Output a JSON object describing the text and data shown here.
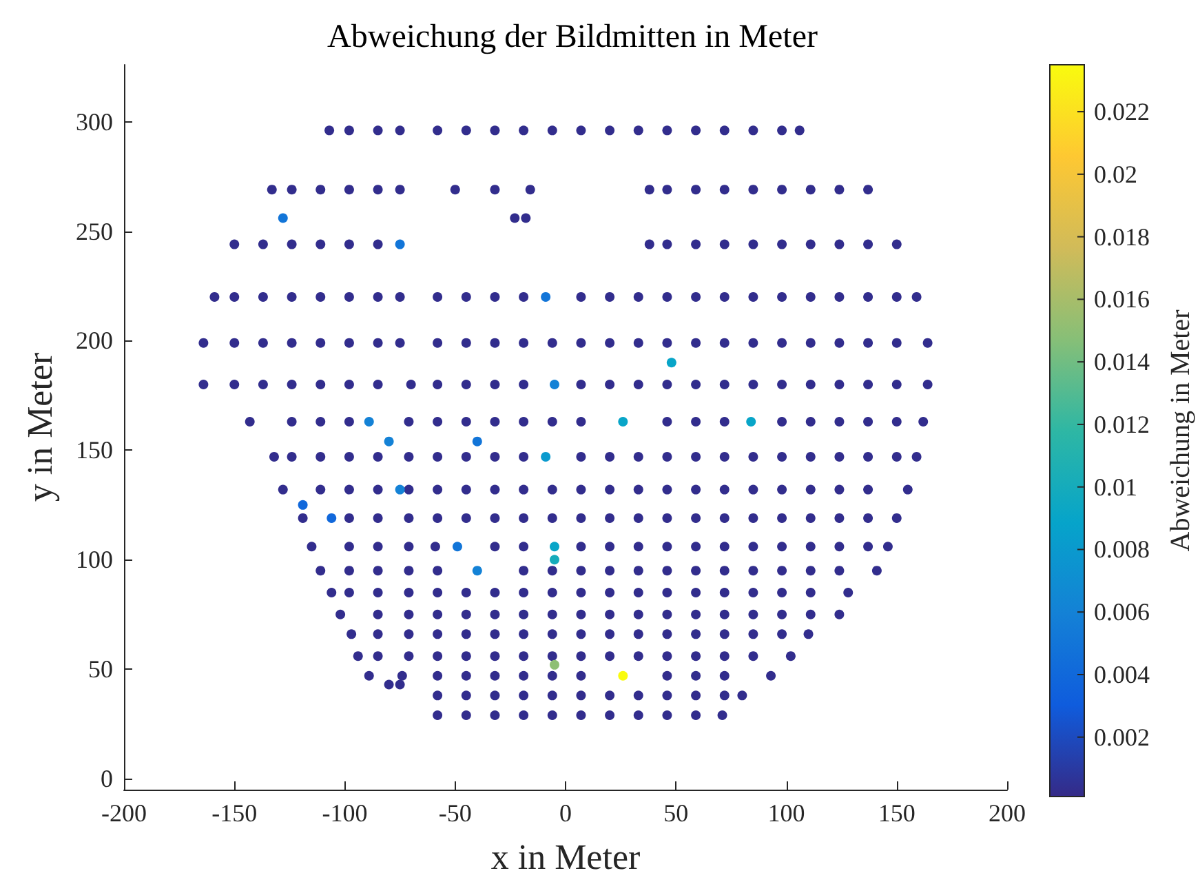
{
  "chart_data": {
    "type": "scatter",
    "title": "Abweichung der Bildmitten in Meter",
    "xlabel": "x in Meter",
    "ylabel": "y in Meter",
    "clabel": "Abweichung in Meter",
    "xlim": [
      -200,
      200
    ],
    "xticks": [
      -200,
      -150,
      -100,
      -50,
      0,
      50,
      100,
      150,
      200
    ],
    "ylim": [
      -5,
      326
    ],
    "yticks": [
      0,
      50,
      100,
      150,
      200,
      250,
      300
    ],
    "clim": [
      0.0001,
      0.0235
    ],
    "cticks": [
      0.002,
      0.004,
      0.006,
      0.008,
      0.01,
      0.012,
      0.014,
      0.016,
      0.018,
      0.02,
      0.022
    ],
    "marker": "circle",
    "series": [
      {
        "x": [
          -107,
          -98,
          -85,
          -75,
          -58,
          -45,
          -32,
          -19,
          -6,
          7,
          20,
          33,
          46,
          59,
          72,
          85,
          98,
          106
        ],
        "values": [
          296,
          296,
          296,
          296,
          296,
          296,
          296,
          296,
          296,
          296,
          296,
          296,
          296,
          296,
          296,
          296,
          296,
          296
        ],
        "cvalues": [
          0.0003,
          0.0003,
          0.0003,
          0.0003,
          0.0003,
          0.0003,
          0.0003,
          0.0003,
          0.0003,
          0.0003,
          0.0003,
          0.0003,
          0.0003,
          0.0003,
          0.0003,
          0.0003,
          0.0003,
          0.0003
        ]
      },
      {
        "x": [
          -133,
          -124,
          -111,
          -98,
          -85,
          -75,
          -50,
          -32,
          -16,
          38,
          46,
          59,
          72,
          85,
          98,
          111,
          124,
          137
        ],
        "values": [
          269,
          269,
          269,
          269,
          269,
          269,
          269,
          269,
          269,
          269,
          269,
          269,
          269,
          269,
          269,
          269,
          269,
          269
        ],
        "cvalues": [
          0.0003,
          0.0003,
          0.0003,
          0.0003,
          0.0003,
          0.0003,
          0.0003,
          0.0003,
          0.0003,
          0.0003,
          0.0003,
          0.0003,
          0.0003,
          0.0003,
          0.0003,
          0.0003,
          0.0003,
          0.0003
        ]
      },
      {
        "x": [
          -23,
          -18
        ],
        "values": [
          256,
          256
        ],
        "cvalues": [
          0.0003,
          0.0003
        ]
      },
      {
        "x": [
          -150,
          -137,
          -124,
          -111,
          -98,
          -85,
          38,
          46,
          59,
          72,
          85,
          98,
          111,
          124,
          137,
          150
        ],
        "values": [
          244,
          244,
          244,
          244,
          244,
          244,
          244,
          244,
          244,
          244,
          244,
          244,
          244,
          244,
          244,
          244
        ],
        "cvalues": [
          0.0003,
          0.0003,
          0.0003,
          0.0003,
          0.0003,
          0.0003,
          0.0003,
          0.0003,
          0.0003,
          0.0003,
          0.0003,
          0.0003,
          0.0003,
          0.0003,
          0.0003,
          0.0003
        ]
      },
      {
        "x": [
          -159,
          -150,
          -137,
          -124,
          -111,
          -98,
          -85,
          -75,
          -58,
          -45,
          -32,
          -19,
          7,
          20,
          33,
          46,
          59,
          72,
          85,
          98,
          111,
          124,
          137,
          150,
          159
        ],
        "values": [
          220,
          220,
          220,
          220,
          220,
          220,
          220,
          220,
          220,
          220,
          220,
          220,
          220,
          220,
          220,
          220,
          220,
          220,
          220,
          220,
          220,
          220,
          220,
          220,
          220
        ],
        "cvalues": [
          0.0003,
          0.0003,
          0.0003,
          0.0003,
          0.0003,
          0.0003,
          0.0003,
          0.0003,
          0.0003,
          0.0003,
          0.0003,
          0.0003,
          0.0003,
          0.0003,
          0.0003,
          0.0003,
          0.0003,
          0.0003,
          0.0003,
          0.0003,
          0.0003,
          0.0003,
          0.0003,
          0.0003,
          0.0003
        ]
      },
      {
        "x": [
          -164,
          -150,
          -137,
          -124,
          -111,
          -98,
          -85,
          -75,
          -58,
          -45,
          -32,
          -19,
          -6,
          7,
          20,
          33,
          46,
          59,
          72,
          85,
          98,
          111,
          124,
          137,
          150,
          164
        ],
        "values": [
          199,
          199,
          199,
          199,
          199,
          199,
          199,
          199,
          199,
          199,
          199,
          199,
          199,
          199,
          199,
          199,
          199,
          199,
          199,
          199,
          199,
          199,
          199,
          199,
          199,
          199
        ],
        "cvalues": [
          0.0003,
          0.0003,
          0.0003,
          0.0003,
          0.0003,
          0.0003,
          0.0003,
          0.0003,
          0.0003,
          0.0003,
          0.0003,
          0.0003,
          0.0003,
          0.0003,
          0.0003,
          0.0003,
          0.0003,
          0.0003,
          0.0003,
          0.0003,
          0.0003,
          0.0003,
          0.0003,
          0.0003,
          0.0003,
          0.0003
        ]
      },
      {
        "x": [
          -164,
          -150,
          -137,
          -124,
          -111,
          -98,
          -85,
          -70,
          -58,
          -45,
          -32,
          -19,
          7,
          20,
          33,
          46,
          59,
          72,
          85,
          98,
          111,
          124,
          137,
          150,
          164
        ],
        "values": [
          180,
          180,
          180,
          180,
          180,
          180,
          180,
          180,
          180,
          180,
          180,
          180,
          180,
          180,
          180,
          180,
          180,
          180,
          180,
          180,
          180,
          180,
          180,
          180,
          180
        ],
        "cvalues": [
          0.0003,
          0.0003,
          0.0003,
          0.0003,
          0.0003,
          0.0003,
          0.0003,
          0.0003,
          0.0003,
          0.0003,
          0.0003,
          0.0003,
          0.0003,
          0.0003,
          0.0003,
          0.0003,
          0.0003,
          0.0003,
          0.0003,
          0.0003,
          0.0003,
          0.0003,
          0.0003,
          0.0003,
          0.0003
        ]
      },
      {
        "x": [
          -143,
          -124,
          -111,
          -98,
          -71,
          -58,
          -45,
          -32,
          -19,
          -6,
          7,
          46,
          59,
          72,
          98,
          111,
          124,
          137,
          150,
          162
        ],
        "values": [
          163,
          163,
          163,
          163,
          163,
          163,
          163,
          163,
          163,
          163,
          163,
          163,
          163,
          163,
          163,
          163,
          163,
          163,
          163,
          163
        ],
        "cvalues": [
          0.0003,
          0.0003,
          0.0003,
          0.0003,
          0.0003,
          0.0003,
          0.0003,
          0.0003,
          0.0003,
          0.0003,
          0.0003,
          0.0003,
          0.0003,
          0.0003,
          0.0003,
          0.0003,
          0.0003,
          0.0003,
          0.0003,
          0.0003
        ]
      },
      {
        "x": [
          -132,
          -124,
          -111,
          -98,
          -85,
          -71,
          -58,
          -45,
          -32,
          -19,
          7,
          20,
          33,
          46,
          59,
          72,
          85,
          98,
          111,
          124,
          137,
          150,
          159
        ],
        "values": [
          147,
          147,
          147,
          147,
          147,
          147,
          147,
          147,
          147,
          147,
          147,
          147,
          147,
          147,
          147,
          147,
          147,
          147,
          147,
          147,
          147,
          147,
          147
        ],
        "cvalues": [
          0.0003,
          0.0003,
          0.0003,
          0.0003,
          0.0003,
          0.0003,
          0.0003,
          0.0003,
          0.0003,
          0.0003,
          0.0003,
          0.0003,
          0.0003,
          0.0003,
          0.0003,
          0.0003,
          0.0003,
          0.0003,
          0.0003,
          0.0003,
          0.0003,
          0.0003,
          0.0003
        ]
      },
      {
        "x": [
          -128,
          -111,
          -98,
          -85,
          -71,
          -58,
          -45,
          -32,
          -19,
          -6,
          7,
          20,
          33,
          46,
          59,
          72,
          85,
          98,
          111,
          124,
          137,
          155
        ],
        "values": [
          132,
          132,
          132,
          132,
          132,
          132,
          132,
          132,
          132,
          132,
          132,
          132,
          132,
          132,
          132,
          132,
          132,
          132,
          132,
          132,
          132,
          132
        ],
        "cvalues": [
          0.0003,
          0.0003,
          0.0003,
          0.0003,
          0.0003,
          0.0003,
          0.0003,
          0.0003,
          0.0003,
          0.0003,
          0.0003,
          0.0003,
          0.0003,
          0.0003,
          0.0003,
          0.0003,
          0.0003,
          0.0003,
          0.0003,
          0.0003,
          0.0003,
          0.0003
        ]
      },
      {
        "x": [
          -119,
          -98,
          -85,
          -71,
          -58,
          -45,
          -32,
          -19,
          -6,
          7,
          20,
          33,
          46,
          59,
          72,
          85,
          98,
          111,
          124,
          137,
          150
        ],
        "values": [
          119,
          119,
          119,
          119,
          119,
          119,
          119,
          119,
          119,
          119,
          119,
          119,
          119,
          119,
          119,
          119,
          119,
          119,
          119,
          119,
          119
        ],
        "cvalues": [
          0.0003,
          0.0003,
          0.0003,
          0.0003,
          0.0003,
          0.0003,
          0.0003,
          0.0003,
          0.0003,
          0.0003,
          0.0003,
          0.0003,
          0.0003,
          0.0003,
          0.0003,
          0.0003,
          0.0003,
          0.0003,
          0.0003,
          0.0003,
          0.0003
        ]
      },
      {
        "x": [
          -115,
          -98,
          -85,
          -71,
          -59,
          -32,
          -19,
          7,
          20,
          33,
          46,
          59,
          72,
          85,
          98,
          111,
          124,
          137,
          146
        ],
        "values": [
          106,
          106,
          106,
          106,
          106,
          106,
          106,
          106,
          106,
          106,
          106,
          106,
          106,
          106,
          106,
          106,
          106,
          106,
          106
        ],
        "cvalues": [
          0.0003,
          0.0003,
          0.0003,
          0.0003,
          0.0003,
          0.0003,
          0.0003,
          0.0003,
          0.0003,
          0.0003,
          0.0003,
          0.0003,
          0.0003,
          0.0003,
          0.0003,
          0.0003,
          0.0003,
          0.0003,
          0.0003
        ]
      },
      {
        "x": [
          -111,
          -98,
          -85,
          -71,
          -58,
          -19,
          -6,
          7,
          20,
          33,
          46,
          59,
          72,
          85,
          98,
          111,
          124,
          141
        ],
        "values": [
          95,
          95,
          95,
          95,
          95,
          95,
          95,
          95,
          95,
          95,
          95,
          95,
          95,
          95,
          95,
          95,
          95,
          95
        ],
        "cvalues": [
          0.0003,
          0.0003,
          0.0003,
          0.0003,
          0.0003,
          0.0003,
          0.0003,
          0.0003,
          0.0003,
          0.0003,
          0.0003,
          0.0003,
          0.0003,
          0.0003,
          0.0003,
          0.0003,
          0.0003,
          0.0003
        ]
      },
      {
        "x": [
          -106,
          -98,
          -85,
          -71,
          -58,
          -45,
          -32,
          -19,
          -6,
          7,
          20,
          33,
          46,
          59,
          72,
          85,
          98,
          111,
          128
        ],
        "values": [
          85,
          85,
          85,
          85,
          85,
          85,
          85,
          85,
          85,
          85,
          85,
          85,
          85,
          85,
          85,
          85,
          85,
          85,
          85
        ],
        "cvalues": [
          0.0003,
          0.0003,
          0.0003,
          0.0003,
          0.0003,
          0.0003,
          0.0003,
          0.0003,
          0.0003,
          0.0003,
          0.0003,
          0.0003,
          0.0003,
          0.0003,
          0.0003,
          0.0003,
          0.0003,
          0.0003,
          0.0003
        ]
      },
      {
        "x": [
          -102,
          -85,
          -71,
          -58,
          -45,
          -32,
          -19,
          -6,
          7,
          20,
          33,
          46,
          59,
          72,
          85,
          98,
          111,
          124
        ],
        "values": [
          75,
          75,
          75,
          75,
          75,
          75,
          75,
          75,
          75,
          75,
          75,
          75,
          75,
          75,
          75,
          75,
          75,
          75
        ],
        "cvalues": [
          0.0003,
          0.0003,
          0.0003,
          0.0003,
          0.0003,
          0.0003,
          0.0003,
          0.0003,
          0.0003,
          0.0003,
          0.0003,
          0.0003,
          0.0003,
          0.0003,
          0.0003,
          0.0003,
          0.0003,
          0.0003
        ]
      },
      {
        "x": [
          -97,
          -85,
          -71,
          -58,
          -45,
          -32,
          -19,
          -6,
          7,
          20,
          33,
          46,
          59,
          72,
          85,
          98,
          110
        ],
        "values": [
          66,
          66,
          66,
          66,
          66,
          66,
          66,
          66,
          66,
          66,
          66,
          66,
          66,
          66,
          66,
          66,
          66
        ],
        "cvalues": [
          0.0003,
          0.0003,
          0.0003,
          0.0003,
          0.0003,
          0.0003,
          0.0003,
          0.0003,
          0.0003,
          0.0003,
          0.0003,
          0.0003,
          0.0003,
          0.0003,
          0.0003,
          0.0003,
          0.0003
        ]
      },
      {
        "x": [
          -94,
          -85,
          -71,
          -58,
          -45,
          -32,
          -19,
          -6,
          7,
          20,
          33,
          46,
          59,
          72,
          85,
          102
        ],
        "values": [
          56,
          56,
          56,
          56,
          56,
          56,
          56,
          56,
          56,
          56,
          56,
          56,
          56,
          56,
          56,
          56
        ],
        "cvalues": [
          0.0003,
          0.0003,
          0.0003,
          0.0003,
          0.0003,
          0.0003,
          0.0003,
          0.0003,
          0.0003,
          0.0003,
          0.0003,
          0.0003,
          0.0003,
          0.0003,
          0.0003,
          0.0003
        ]
      },
      {
        "x": [
          -89,
          -74,
          -58,
          -45,
          -32,
          -19,
          -6,
          7,
          46,
          59,
          72,
          93
        ],
        "values": [
          47,
          47,
          47,
          47,
          47,
          47,
          47,
          47,
          47,
          47,
          47,
          47
        ],
        "cvalues": [
          0.0003,
          0.0003,
          0.0003,
          0.0003,
          0.0003,
          0.0003,
          0.0003,
          0.0003,
          0.0003,
          0.0003,
          0.0003,
          0.0003
        ]
      },
      {
        "x": [
          -80,
          -75
        ],
        "values": [
          43,
          43
        ],
        "cvalues": [
          0.0003,
          0.0003
        ]
      },
      {
        "x": [
          -58,
          -45,
          -32,
          -19,
          -6,
          7,
          20,
          33,
          46,
          59,
          72,
          80
        ],
        "values": [
          38,
          38,
          38,
          38,
          38,
          38,
          38,
          38,
          38,
          38,
          38,
          38
        ],
        "cvalues": [
          0.0003,
          0.0003,
          0.0003,
          0.0003,
          0.0003,
          0.0003,
          0.0003,
          0.0003,
          0.0003,
          0.0003,
          0.0003,
          0.0003
        ]
      },
      {
        "x": [
          -58,
          -45,
          -32,
          -19,
          -6,
          7,
          20,
          33,
          46,
          59,
          71
        ],
        "values": [
          29,
          29,
          29,
          29,
          29,
          29,
          29,
          29,
          29,
          29,
          29
        ],
        "cvalues": [
          0.0003,
          0.0003,
          0.0003,
          0.0003,
          0.0003,
          0.0003,
          0.0003,
          0.0003,
          0.0003,
          0.0003,
          0.0003
        ]
      },
      {
        "x": [
          -128
        ],
        "values": [
          256
        ],
        "cvalues": [
          0.005
        ]
      },
      {
        "x": [
          -75
        ],
        "values": [
          244
        ],
        "cvalues": [
          0.005
        ]
      },
      {
        "x": [
          -9
        ],
        "values": [
          220
        ],
        "cvalues": [
          0.005
        ]
      },
      {
        "x": [
          48
        ],
        "values": [
          190
        ],
        "cvalues": [
          0.009
        ]
      },
      {
        "x": [
          -5
        ],
        "values": [
          180
        ],
        "cvalues": [
          0.006
        ]
      },
      {
        "x": [
          -89
        ],
        "values": [
          163
        ],
        "cvalues": [
          0.006
        ]
      },
      {
        "x": [
          26
        ],
        "values": [
          163
        ],
        "cvalues": [
          0.009
        ]
      },
      {
        "x": [
          84
        ],
        "values": [
          163
        ],
        "cvalues": [
          0.009
        ]
      },
      {
        "x": [
          -80
        ],
        "values": [
          154
        ],
        "cvalues": [
          0.006
        ]
      },
      {
        "x": [
          -40
        ],
        "values": [
          154
        ],
        "cvalues": [
          0.005
        ]
      },
      {
        "x": [
          -9
        ],
        "values": [
          147
        ],
        "cvalues": [
          0.008
        ]
      },
      {
        "x": [
          -75
        ],
        "values": [
          132
        ],
        "cvalues": [
          0.006
        ]
      },
      {
        "x": [
          -119
        ],
        "values": [
          125
        ],
        "cvalues": [
          0.004
        ]
      },
      {
        "x": [
          -106
        ],
        "values": [
          119
        ],
        "cvalues": [
          0.004
        ]
      },
      {
        "x": [
          -49
        ],
        "values": [
          106
        ],
        "cvalues": [
          0.005
        ]
      },
      {
        "x": [
          -5
        ],
        "values": [
          106
        ],
        "cvalues": [
          0.009
        ]
      },
      {
        "x": [
          -5
        ],
        "values": [
          100
        ],
        "cvalues": [
          0.01
        ]
      },
      {
        "x": [
          -40
        ],
        "values": [
          95
        ],
        "cvalues": [
          0.006
        ]
      },
      {
        "x": [
          -5
        ],
        "values": [
          52
        ],
        "cvalues": [
          0.015
        ]
      },
      {
        "x": [
          26
        ],
        "values": [
          47
        ],
        "cvalues": [
          0.0235
        ]
      }
    ]
  }
}
